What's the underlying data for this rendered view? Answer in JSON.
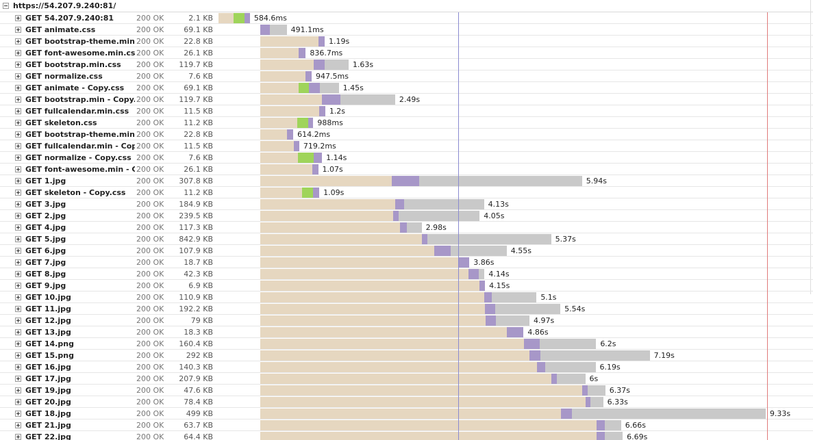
{
  "header": {
    "url": "https://54.207.9.240:81/"
  },
  "phase_colors": [
    "#e6d7c0",
    "#9fd45a",
    "#a797c8",
    "#c9c9c9"
  ],
  "markers": [
    {
      "time": 4.42,
      "color": "#8a8ad0"
    },
    {
      "time": 10.13,
      "color": "#e07a7a"
    }
  ],
  "rows": [
    {
      "name": "GET 54.207.9.240:81",
      "status": "200 OK",
      "size": "2.1 KB",
      "time": "584.6ms",
      "timing": [
        0,
        0.28,
        0.2,
        0.1,
        0
      ]
    },
    {
      "name": "GET animate.css",
      "status": "200 OK",
      "size": "69.1 KB",
      "time": "491.1ms",
      "timing": [
        0.77,
        0,
        0,
        0.18,
        0.31
      ]
    },
    {
      "name": "GET bootstrap-theme.min.c",
      "status": "200 OK",
      "size": "22.8 KB",
      "time": "1.19s",
      "timing": [
        0.77,
        1.07,
        0,
        0.12,
        0
      ]
    },
    {
      "name": "GET font-awesome.min.css",
      "status": "200 OK",
      "size": "26.1 KB",
      "time": "836.7ms",
      "timing": [
        0.77,
        0.71,
        0,
        0.13,
        0
      ]
    },
    {
      "name": "GET bootstrap.min.css",
      "status": "200 OK",
      "size": "119.7 KB",
      "time": "1.63s",
      "timing": [
        0.77,
        0.99,
        0,
        0.2,
        0.44
      ]
    },
    {
      "name": "GET normalize.css",
      "status": "200 OK",
      "size": "7.6 KB",
      "time": "947.5ms",
      "timing": [
        0.77,
        0.84,
        0,
        0.11,
        0
      ]
    },
    {
      "name": "GET animate - Copy.css",
      "status": "200 OK",
      "size": "69.1 KB",
      "time": "1.45s",
      "timing": [
        0.77,
        0.71,
        0.19,
        0.2,
        0.35
      ]
    },
    {
      "name": "GET bootstrap.min - Copy.c",
      "status": "200 OK",
      "size": "119.7 KB",
      "time": "2.49s",
      "timing": [
        0.77,
        1.14,
        0,
        0.34,
        1.01
      ]
    },
    {
      "name": "GET fullcalendar.min.css",
      "status": "200 OK",
      "size": "11.5 KB",
      "time": "1.2s",
      "timing": [
        0.77,
        1.09,
        0,
        0.11,
        0
      ]
    },
    {
      "name": "GET skeleton.css",
      "status": "200 OK",
      "size": "11.2 KB",
      "time": "988ms",
      "timing": [
        0.77,
        0.68,
        0.2,
        0.1,
        0
      ]
    },
    {
      "name": "GET bootstrap-theme.min -",
      "status": "200 OK",
      "size": "22.8 KB",
      "time": "614.2ms",
      "timing": [
        0.77,
        0.49,
        0,
        0.12,
        0
      ]
    },
    {
      "name": "GET fullcalendar.min - Copy.",
      "status": "200 OK",
      "size": "11.5 KB",
      "time": "719.2ms",
      "timing": [
        0.77,
        0.62,
        0,
        0.1,
        0
      ]
    },
    {
      "name": "GET normalize - Copy.css",
      "status": "200 OK",
      "size": "7.6 KB",
      "time": "1.14s",
      "timing": [
        0.77,
        0.7,
        0.29,
        0.15,
        0
      ]
    },
    {
      "name": "GET font-awesome.min - Co",
      "status": "200 OK",
      "size": "26.1 KB",
      "time": "1.07s",
      "timing": [
        0.77,
        0.96,
        0,
        0.11,
        0
      ]
    },
    {
      "name": "GET 1.jpg",
      "status": "200 OK",
      "size": "307.8 KB",
      "time": "5.94s",
      "timing": [
        0.77,
        2.43,
        0,
        0.51,
        3.0
      ]
    },
    {
      "name": "GET skeleton - Copy.css",
      "status": "200 OK",
      "size": "11.2 KB",
      "time": "1.09s",
      "timing": [
        0.77,
        0.77,
        0.21,
        0.11,
        0
      ]
    },
    {
      "name": "GET 3.jpg",
      "status": "200 OK",
      "size": "184.9 KB",
      "time": "4.13s",
      "timing": [
        0.77,
        2.49,
        0,
        0.16,
        1.48
      ]
    },
    {
      "name": "GET 2.jpg",
      "status": "200 OK",
      "size": "239.5 KB",
      "time": "4.05s",
      "timing": [
        0.77,
        2.46,
        0,
        0.1,
        1.49
      ]
    },
    {
      "name": "GET 4.jpg",
      "status": "200 OK",
      "size": "117.3 KB",
      "time": "2.98s",
      "timing": [
        0.77,
        2.58,
        0,
        0.13,
        0.27
      ]
    },
    {
      "name": "GET 5.jpg",
      "status": "200 OK",
      "size": "842.9 KB",
      "time": "5.37s",
      "timing": [
        0.77,
        2.98,
        0,
        0.11,
        2.28
      ]
    },
    {
      "name": "GET 6.jpg",
      "status": "200 OK",
      "size": "107.9 KB",
      "time": "4.55s",
      "timing": [
        0.77,
        3.21,
        0,
        0.3,
        1.04
      ]
    },
    {
      "name": "GET 7.jpg",
      "status": "200 OK",
      "size": "18.7 KB",
      "time": "3.86s",
      "timing": [
        0.77,
        3.67,
        0,
        0.19,
        0
      ]
    },
    {
      "name": "GET 8.jpg",
      "status": "200 OK",
      "size": "42.3 KB",
      "time": "4.14s",
      "timing": [
        0.77,
        3.85,
        0,
        0.19,
        0.1
      ]
    },
    {
      "name": "GET 9.jpg",
      "status": "200 OK",
      "size": "6.9 KB",
      "time": "4.15s",
      "timing": [
        0.77,
        4.05,
        0,
        0.1,
        0
      ]
    },
    {
      "name": "GET 10.jpg",
      "status": "200 OK",
      "size": "110.9 KB",
      "time": "5.1s",
      "timing": [
        0.77,
        4.13,
        0,
        0.15,
        0.82
      ]
    },
    {
      "name": "GET 11.jpg",
      "status": "200 OK",
      "size": "192.2 KB",
      "time": "5.54s",
      "timing": [
        0.77,
        4.15,
        0,
        0.19,
        1.2
      ]
    },
    {
      "name": "GET 12.jpg",
      "status": "200 OK",
      "size": "79 KB",
      "time": "4.97s",
      "timing": [
        0.77,
        4.16,
        0,
        0.19,
        0.62
      ]
    },
    {
      "name": "GET 13.jpg",
      "status": "200 OK",
      "size": "18.3 KB",
      "time": "4.86s",
      "timing": [
        0.77,
        4.55,
        0,
        0.31,
        0
      ]
    },
    {
      "name": "GET 14.png",
      "status": "200 OK",
      "size": "160.4 KB",
      "time": "6.2s",
      "timing": [
        0.77,
        4.87,
        0,
        0.29,
        1.04
      ]
    },
    {
      "name": "GET 15.png",
      "status": "200 OK",
      "size": "292 KB",
      "time": "7.19s",
      "timing": [
        0.77,
        4.97,
        0,
        0.2,
        2.02
      ]
    },
    {
      "name": "GET 16.jpg",
      "status": "200 OK",
      "size": "140.3 KB",
      "time": "6.19s",
      "timing": [
        0.77,
        5.11,
        0,
        0.15,
        0.93
      ]
    },
    {
      "name": "GET 17.jpg",
      "status": "200 OK",
      "size": "207.9 KB",
      "time": "6s",
      "timing": [
        0.77,
        5.37,
        0,
        0.11,
        0.52
      ]
    },
    {
      "name": "GET 19.jpg",
      "status": "200 OK",
      "size": "47.6 KB",
      "time": "6.37s",
      "timing": [
        0.77,
        5.94,
        0,
        0.11,
        0.32
      ]
    },
    {
      "name": "GET 20.jpg",
      "status": "200 OK",
      "size": "78.4 KB",
      "time": "6.33s",
      "timing": [
        0.77,
        6.0,
        0,
        0.1,
        0.23
      ]
    },
    {
      "name": "GET 18.jpg",
      "status": "200 OK",
      "size": "499 KB",
      "time": "9.33s",
      "timing": [
        0.77,
        5.55,
        0,
        0.2,
        3.58
      ]
    },
    {
      "name": "GET 21.jpg",
      "status": "200 OK",
      "size": "63.7 KB",
      "time": "6.66s",
      "timing": [
        0.77,
        6.21,
        0,
        0.15,
        0.3
      ]
    },
    {
      "name": "GET 22.jpg",
      "status": "200 OK",
      "size": "64.4 KB",
      "time": "6.69s",
      "timing": [
        0.77,
        6.21,
        0,
        0.15,
        0.33
      ]
    }
  ]
}
